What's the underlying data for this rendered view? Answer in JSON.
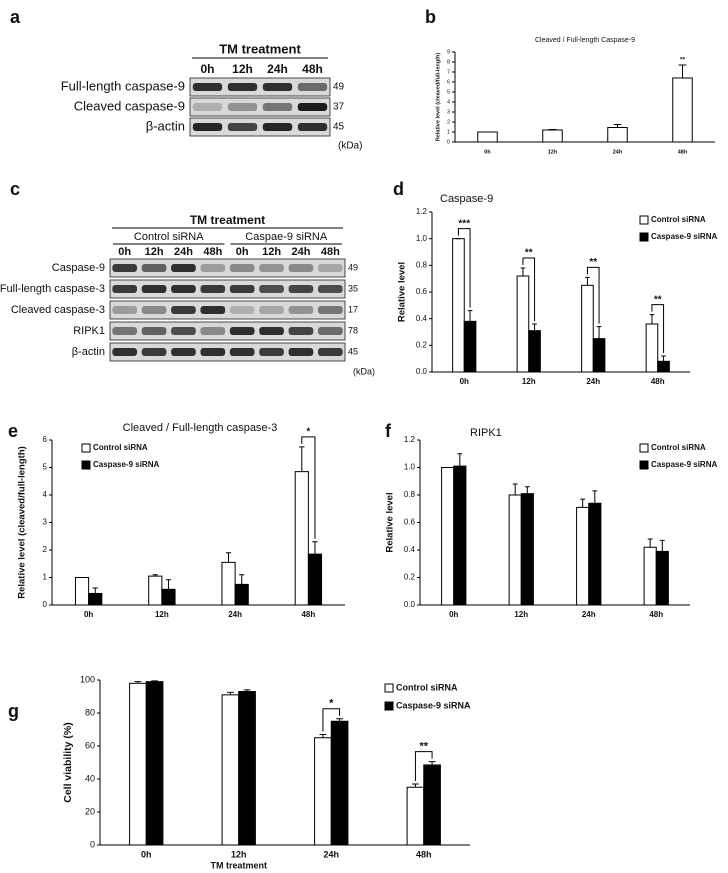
{
  "blots": [
    {
      "label": "a",
      "treatment": "TM treatment",
      "lanes": [
        "0h",
        "12h",
        "24h",
        "48h"
      ],
      "rows": [
        {
          "name": "Full-length caspase-9",
          "kda": "49"
        },
        {
          "name": "Cleaved caspase-9",
          "kda": "37"
        },
        {
          "name": "β-actin",
          "kda": "45"
        }
      ],
      "unit": "(kDa)"
    },
    {
      "label": "c",
      "treatment": "TM treatment",
      "groups": [
        {
          "name": "Control siRNA",
          "lanes": [
            "0h",
            "12h",
            "24h",
            "48h"
          ]
        },
        {
          "name": "Caspae-9 siRNA",
          "lanes": [
            "0h",
            "12h",
            "24h",
            "48h"
          ]
        }
      ],
      "rows": [
        {
          "name": "Caspase-9",
          "kda": "49"
        },
        {
          "name": "Full-length caspase-3",
          "kda": "35"
        },
        {
          "name": "Cleaved caspase-3",
          "kda": "17"
        },
        {
          "name": "RIPK1",
          "kda": "78"
        },
        {
          "name": "β-actin",
          "kda": "45"
        }
      ],
      "unit": "(kDa)"
    }
  ],
  "chart_data": [
    {
      "type": "bar",
      "label": "b",
      "title": "Cleaved / Full-length Caspase-9",
      "ylabel": "Relative level (cleaved/full-length)",
      "categories": [
        "0h",
        "12h",
        "24h",
        "48h"
      ],
      "series": [
        {
          "color": "#ffffff",
          "values": [
            1,
            1.2,
            1.45,
            6.4
          ],
          "errors": [
            0,
            0.05,
            0.3,
            1.3
          ]
        }
      ],
      "ylim": [
        0,
        9
      ],
      "yticks": [
        0,
        1,
        2,
        3,
        4,
        5,
        6,
        7,
        8,
        9
      ],
      "significance": [
        null,
        null,
        null,
        "**"
      ]
    },
    {
      "type": "bar",
      "label": "d",
      "title": "Caspase-9",
      "ylabel": "Relative level",
      "categories": [
        "0h",
        "12h",
        "24h",
        "48h"
      ],
      "series": [
        {
          "name": "Control siRNA",
          "color": "#ffffff",
          "values": [
            1.0,
            0.72,
            0.65,
            0.36
          ],
          "errors": [
            0,
            0.06,
            0.06,
            0.07
          ]
        },
        {
          "name": "Caspase-9 siRNA",
          "color": "#000000",
          "values": [
            0.38,
            0.31,
            0.25,
            0.08
          ],
          "errors": [
            0.08,
            0.05,
            0.09,
            0.04
          ]
        }
      ],
      "ylim": [
        0,
        1.2
      ],
      "yticks": [
        {
          "value": 0,
          "label": "0.0"
        },
        0.2,
        0.4,
        0.6,
        0.8,
        {
          "value": 1,
          "label": "1.0"
        },
        1.2
      ],
      "legend": "upper right",
      "significance": [
        "***",
        "**",
        "**",
        "**"
      ]
    },
    {
      "type": "bar",
      "label": "e",
      "title": "Cleaved / Full-length caspase-3",
      "ylabel": "Relative level (cleaved/full-length)",
      "categories": [
        "0h",
        "12h",
        "24h",
        "48h"
      ],
      "series": [
        {
          "name": "Control siRNA",
          "color": "#ffffff",
          "values": [
            1.0,
            1.05,
            1.55,
            4.85
          ],
          "errors": [
            0,
            0.05,
            0.35,
            0.9
          ]
        },
        {
          "name": "Caspase-9 siRNA",
          "color": "#000000",
          "values": [
            0.42,
            0.57,
            0.75,
            1.85
          ],
          "errors": [
            0.2,
            0.35,
            0.35,
            0.45
          ]
        }
      ],
      "ylim": [
        0,
        6
      ],
      "yticks": [
        0,
        1,
        2,
        3,
        4,
        5,
        6
      ],
      "legend": "upper left",
      "significance": [
        null,
        null,
        null,
        "*"
      ]
    },
    {
      "type": "bar",
      "label": "f",
      "title": "RIPK1",
      "ylabel": "Relative level",
      "categories": [
        "0h",
        "12h",
        "24h",
        "48h"
      ],
      "series": [
        {
          "name": "Control siRNA",
          "color": "#ffffff",
          "values": [
            1.0,
            0.8,
            0.71,
            0.42
          ],
          "errors": [
            0,
            0.08,
            0.06,
            0.06
          ]
        },
        {
          "name": "Caspase-9 siRNA",
          "color": "#000000",
          "values": [
            1.01,
            0.81,
            0.74,
            0.39
          ],
          "errors": [
            0.09,
            0.05,
            0.09,
            0.08
          ]
        }
      ],
      "ylim": [
        0,
        1.2
      ],
      "yticks": [
        {
          "value": 0,
          "label": "0.0"
        },
        0.2,
        0.4,
        0.6,
        0.8,
        {
          "value": 1,
          "label": "1.0"
        },
        1.2
      ],
      "legend": "upper right"
    },
    {
      "type": "bar",
      "label": "g",
      "ylabel": "Cell viability (%)",
      "xlabel": "TM treatment",
      "categories": [
        "0h",
        "12h",
        "24h",
        "48h"
      ],
      "series": [
        {
          "name": "Control siRNA",
          "color": "#ffffff",
          "values": [
            98,
            91,
            65,
            35
          ],
          "errors": [
            1,
            1.5,
            2,
            2
          ]
        },
        {
          "name": "Caspase-9 siRNA",
          "color": "#000000",
          "values": [
            99,
            93,
            75,
            48.5
          ],
          "errors": [
            0.5,
            1,
            1.5,
            2
          ]
        }
      ],
      "ylim": [
        0,
        100
      ],
      "yticks": [
        0,
        20,
        40,
        60,
        80,
        100
      ],
      "legend": "upper right",
      "significance": [
        null,
        null,
        "*",
        "**"
      ]
    }
  ]
}
